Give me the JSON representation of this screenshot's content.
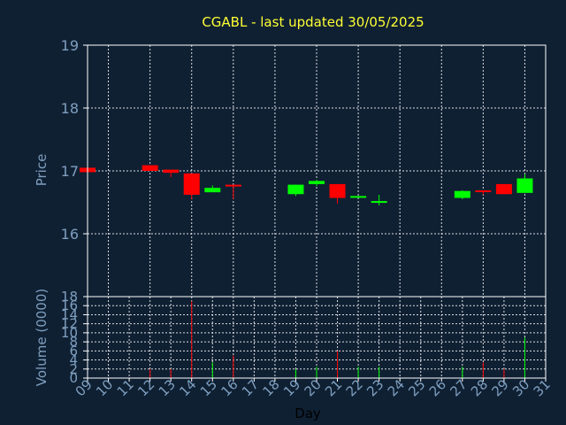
{
  "title": "CGABL - last updated 30/05/2025",
  "colors": {
    "background": "#0f2033",
    "title": "#ffff33",
    "axis_text": "#7f9fbf",
    "up": "#00ff00",
    "down": "#ff0000"
  },
  "chart_data": [
    {
      "type": "candlestick",
      "ylabel": "Price",
      "ylim": [
        15.0,
        19.0
      ],
      "yticks": [
        "16",
        "17",
        "18",
        "19"
      ],
      "xlim": [
        9,
        31
      ],
      "grid": true,
      "candles": [
        {
          "day": 9,
          "open": 17.05,
          "high": 17.05,
          "low": 16.98,
          "close": 16.98
        },
        {
          "day": 12,
          "open": 17.09,
          "high": 17.09,
          "low": 17.0,
          "close": 17.0
        },
        {
          "day": 13,
          "open": 17.02,
          "high": 17.02,
          "low": 16.9,
          "close": 16.97
        },
        {
          "day": 14,
          "open": 16.96,
          "high": 16.96,
          "low": 16.55,
          "close": 16.62
        },
        {
          "day": 15,
          "open": 16.66,
          "high": 16.77,
          "low": 16.66,
          "close": 16.73
        },
        {
          "day": 16,
          "open": 16.78,
          "high": 16.78,
          "low": 16.55,
          "close": 16.76
        },
        {
          "day": 19,
          "open": 16.63,
          "high": 16.78,
          "low": 16.6,
          "close": 16.78
        },
        {
          "day": 20,
          "open": 16.79,
          "high": 16.86,
          "low": 16.76,
          "close": 16.84
        },
        {
          "day": 21,
          "open": 16.79,
          "high": 16.79,
          "low": 16.48,
          "close": 16.57
        },
        {
          "day": 22,
          "open": 16.58,
          "high": 16.6,
          "low": 16.58,
          "close": 16.6
        },
        {
          "day": 23,
          "open": 16.51,
          "high": 16.62,
          "low": 16.45,
          "close": 16.52
        },
        {
          "day": 27,
          "open": 16.57,
          "high": 16.69,
          "low": 16.55,
          "close": 16.68
        },
        {
          "day": 28,
          "open": 16.69,
          "high": 16.69,
          "low": 16.62,
          "close": 16.68
        },
        {
          "day": 29,
          "open": 16.79,
          "high": 16.79,
          "low": 16.63,
          "close": 16.63
        },
        {
          "day": 30,
          "open": 16.65,
          "high": 16.95,
          "low": 16.65,
          "close": 16.88
        }
      ]
    },
    {
      "type": "bar",
      "ylabel": "Volume (0000)",
      "xlabel": "Day",
      "ylim": [
        0,
        18
      ],
      "yticks": [
        "0",
        "2",
        "4",
        "6",
        "8",
        "10",
        "12",
        "14",
        "16",
        "18"
      ],
      "xticks": [
        "09",
        "10",
        "11",
        "12",
        "13",
        "14",
        "15",
        "16",
        "17",
        "18",
        "19",
        "20",
        "21",
        "22",
        "23",
        "24",
        "25",
        "26",
        "27",
        "28",
        "29",
        "30",
        "31"
      ],
      "grid": true,
      "bars": [
        {
          "day": 12,
          "value": 2.0,
          "dir": "down"
        },
        {
          "day": 13,
          "value": 2.0,
          "dir": "down"
        },
        {
          "day": 14,
          "value": 17.0,
          "dir": "down"
        },
        {
          "day": 15,
          "value": 3.5,
          "dir": "up"
        },
        {
          "day": 16,
          "value": 5.0,
          "dir": "down"
        },
        {
          "day": 19,
          "value": 2.0,
          "dir": "up"
        },
        {
          "day": 20,
          "value": 2.5,
          "dir": "up"
        },
        {
          "day": 21,
          "value": 6.0,
          "dir": "down"
        },
        {
          "day": 22,
          "value": 2.5,
          "dir": "up"
        },
        {
          "day": 23,
          "value": 2.5,
          "dir": "up"
        },
        {
          "day": 27,
          "value": 2.5,
          "dir": "up"
        },
        {
          "day": 28,
          "value": 3.5,
          "dir": "down"
        },
        {
          "day": 29,
          "value": 2.0,
          "dir": "down"
        },
        {
          "day": 30,
          "value": 9.0,
          "dir": "up"
        }
      ]
    }
  ]
}
